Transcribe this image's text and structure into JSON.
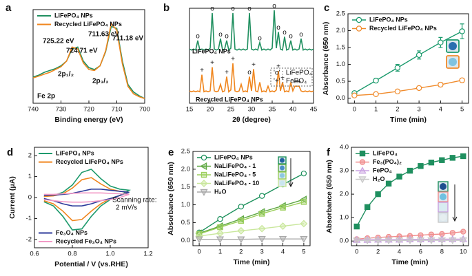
{
  "chart_data": [
    {
      "type": "line",
      "panel": "a",
      "xlabel": "Binding energy (eV)",
      "xlim": [
        740,
        700
      ],
      "xticks": [
        740,
        730,
        720,
        710,
        700
      ],
      "ylim": [
        0,
        1
      ],
      "legend": "upper left",
      "x": [
        740,
        738,
        736,
        734,
        732,
        730,
        728,
        726,
        724,
        722,
        720,
        718,
        716,
        714,
        712,
        710,
        708,
        706,
        704,
        702,
        700
      ],
      "series": [
        {
          "name": "LiFePO₄ NPs",
          "color": "#1f8f5f",
          "values": [
            0.28,
            0.3,
            0.33,
            0.35,
            0.37,
            0.4,
            0.45,
            0.58,
            0.6,
            0.45,
            0.38,
            0.36,
            0.4,
            0.55,
            0.82,
            0.8,
            0.45,
            0.2,
            0.12,
            0.08,
            0.05
          ]
        },
        {
          "name": "Recycled LiFePO₄ NPs",
          "color": "#f0861e",
          "values": [
            0.27,
            0.29,
            0.31,
            0.33,
            0.36,
            0.39,
            0.45,
            0.6,
            0.58,
            0.43,
            0.36,
            0.35,
            0.4,
            0.56,
            0.85,
            0.78,
            0.42,
            0.18,
            0.1,
            0.07,
            0.05
          ]
        }
      ],
      "annotations": [
        "725.22 eV",
        "724.71 eV",
        "711.63 eV",
        "711.18 eV",
        "2p₁/₂",
        "2p₃/₂",
        "Fe 2p"
      ]
    },
    {
      "type": "line",
      "panel": "b",
      "xlabel": "2θ (degree)",
      "xlim": [
        15,
        45
      ],
      "xticks": [
        15,
        20,
        25,
        30,
        35,
        40,
        45
      ],
      "ylim": [
        0,
        1
      ],
      "legend": "inline",
      "x": [
        15,
        15.5,
        16,
        16.5,
        17,
        17.5,
        18,
        18.5,
        19,
        19.5,
        20,
        20.5,
        21,
        21.5,
        22,
        22.5,
        23,
        23.5,
        24,
        24.5,
        25,
        25.5,
        26,
        26.5,
        27,
        27.5,
        28,
        28.5,
        29,
        29.5,
        30,
        30.5,
        31,
        31.5,
        32,
        32.5,
        33,
        33.5,
        34,
        34.5,
        35,
        35.5,
        36,
        36.5,
        37,
        37.5,
        38,
        38.5,
        39,
        39.5,
        40,
        40.5,
        41,
        41.5,
        42,
        42.5,
        43,
        43.5,
        44,
        44.5,
        45
      ],
      "series": [
        {
          "name": "LiFePO₄ NPs",
          "color": "#1f8f5f",
          "values": [
            0.57,
            0.56,
            0.57,
            0.56,
            0.66,
            0.56,
            0.57,
            0.56,
            0.57,
            0.56,
            0.58,
            0.95,
            0.57,
            0.56,
            0.57,
            0.68,
            0.56,
            0.57,
            0.66,
            0.56,
            0.58,
            0.95,
            0.57,
            0.56,
            0.57,
            0.56,
            0.57,
            0.56,
            0.57,
            0.95,
            0.57,
            0.56,
            0.57,
            0.56,
            0.64,
            0.56,
            0.57,
            0.56,
            0.57,
            0.56,
            0.58,
            0.98,
            0.58,
            0.75,
            0.57,
            0.56,
            0.7,
            0.56,
            0.57,
            0.66,
            0.56,
            0.57,
            0.56,
            0.57,
            0.68,
            0.56,
            0.57,
            0.56,
            0.57,
            0.56,
            0.57
          ],
          "peaks": [
            {
              "x": 17,
              "label": "o"
            },
            {
              "x": 20.5,
              "label": "o"
            },
            {
              "x": 22.5,
              "label": "o"
            },
            {
              "x": 24,
              "label": "o"
            },
            {
              "x": 25.5,
              "label": "o"
            },
            {
              "x": 29.5,
              "label": "o"
            },
            {
              "x": 32,
              "label": "o"
            },
            {
              "x": 35.5,
              "label": "o"
            },
            {
              "x": 36.5,
              "label": "o"
            },
            {
              "x": 38,
              "label": "o"
            },
            {
              "x": 39.5,
              "label": "o"
            },
            {
              "x": 42,
              "label": "o"
            }
          ]
        },
        {
          "name": "Recycled LiFePO₄ NPs",
          "color": "#f0861e",
          "values": [
            0.13,
            0.12,
            0.13,
            0.12,
            0.13,
            0.12,
            0.3,
            0.12,
            0.13,
            0.12,
            0.13,
            0.38,
            0.13,
            0.12,
            0.13,
            0.2,
            0.12,
            0.13,
            0.28,
            0.12,
            0.14,
            0.42,
            0.13,
            0.12,
            0.13,
            0.2,
            0.12,
            0.13,
            0.12,
            0.28,
            0.13,
            0.36,
            0.13,
            0.12,
            0.22,
            0.12,
            0.13,
            0.12,
            0.18,
            0.12,
            0.13,
            0.12,
            0.14,
            0.34,
            0.13,
            0.22,
            0.12,
            0.13,
            0.12,
            0.22,
            0.13,
            0.18,
            0.18,
            0.18,
            0.13,
            0.12,
            0.13,
            0.12,
            0.13,
            0.12,
            0.13
          ],
          "peaks": [
            {
              "x": 18,
              "label": "+"
            },
            {
              "x": 20.5,
              "label": "+"
            },
            {
              "x": 24,
              "label": "+"
            },
            {
              "x": 25.5,
              "label": "+"
            },
            {
              "x": 29.5,
              "label": "o"
            },
            {
              "x": 30.5,
              "label": "+"
            },
            {
              "x": 36.5,
              "label": "+"
            },
            {
              "x": 37.5,
              "label": "+"
            },
            {
              "x": 40.5,
              "label": "+"
            },
            {
              "x": 41,
              "label": "+"
            },
            {
              "x": 41.5,
              "label": "+"
            }
          ]
        }
      ],
      "annotations": [
        "'o' : LiFePO₄",
        "'+' : FePO₄"
      ]
    },
    {
      "type": "line",
      "panel": "c",
      "xlabel": "Time (min)",
      "ylabel": "Absorbance (650 nm)",
      "xlim": [
        -0.3,
        5.3
      ],
      "xticks": [
        0,
        1,
        2,
        3,
        4,
        5
      ],
      "ylim": [
        -0.15,
        2.5
      ],
      "yticks": [
        {
          "value": 0,
          "label": "0.0"
        },
        0.5,
        {
          "value": 1,
          "label": "1.0"
        },
        1.5,
        {
          "value": 2,
          "label": "2.0"
        },
        2.5
      ],
      "legend": "upper left",
      "x": [
        0,
        1,
        2,
        3,
        4,
        5
      ],
      "series": [
        {
          "name": "LiFePO₄ NPs",
          "color": "#1a9a6c",
          "marker": "circle-open",
          "values": [
            0.15,
            0.52,
            0.9,
            1.28,
            1.65,
            1.98
          ],
          "errors": [
            0.05,
            0.06,
            0.1,
            0.12,
            0.15,
            0.22
          ]
        },
        {
          "name": "Recycled  LiFePO₄ NPs",
          "color": "#f08a2a",
          "marker": "circle-open",
          "values": [
            0.08,
            0.12,
            0.2,
            0.3,
            0.4,
            0.53
          ],
          "errors": [
            0.03,
            0.03,
            0.04,
            0.05,
            0.06,
            0.06
          ]
        }
      ]
    },
    {
      "type": "line",
      "panel": "d",
      "xlabel": "Potential / V (vs.RHE)",
      "ylabel": "Current (μA)",
      "xlim": [
        0.6,
        1.2
      ],
      "xticks": [
        0.6,
        0.8,
        {
          "value": 1,
          "label": "1.0"
        },
        1.2
      ],
      "ylim": [
        -2.4,
        2.4
      ],
      "yticks": [
        -2,
        -1,
        0,
        1,
        2
      ],
      "legend": "upper left",
      "x": [
        0.65,
        0.7,
        0.75,
        0.8,
        0.85,
        0.9,
        0.95,
        1,
        1.05,
        1.1,
        1.05,
        1,
        0.95,
        0.9,
        0.85,
        0.8,
        0.75,
        0.7,
        0.65
      ],
      "series": [
        {
          "name": "LiFePO₄ NPs",
          "color": "#1d9a6c",
          "values": [
            0.05,
            0.1,
            0.25,
            0.6,
            1.2,
            1.35,
            0.9,
            0.55,
            0.4,
            0.35,
            0.1,
            -0.1,
            -0.4,
            -0.9,
            -1.5,
            -1.55,
            -0.9,
            -0.4,
            -0.2
          ]
        },
        {
          "name": "Recycled LiFePO₄ NPs",
          "color": "#f0861e",
          "values": [
            0.05,
            0.08,
            0.18,
            0.45,
            0.85,
            0.95,
            0.65,
            0.4,
            0.3,
            0.25,
            0.1,
            -0.05,
            -0.3,
            -0.65,
            -1.05,
            -1.1,
            -0.65,
            -0.3,
            -0.15
          ]
        },
        {
          "name": "Fe₃O₄ NPs",
          "color": "#2b3a9a",
          "legend": "lower left",
          "values": [
            0.1,
            0.12,
            0.15,
            0.2,
            0.3,
            0.4,
            0.4,
            0.35,
            0.3,
            0.25,
            0.1,
            -0.05,
            -0.15,
            -0.3,
            -0.4,
            -0.4,
            -0.3,
            -0.15,
            -0.05
          ]
        },
        {
          "name": "Recycled Fe₃O₄ NPs",
          "color": "#f29ac6",
          "legend": "lower left",
          "values": [
            0.15,
            0.15,
            0.18,
            0.2,
            0.22,
            0.22,
            0.22,
            0.2,
            0.18,
            0.15,
            0,
            -0.1,
            -0.15,
            -0.2,
            -0.22,
            -0.22,
            -0.2,
            -0.15,
            -0.1
          ]
        }
      ],
      "annotations": [
        "Scanning rate:",
        "2 mV/s"
      ]
    },
    {
      "type": "line",
      "panel": "e",
      "xlabel": "Time (min)",
      "ylabel": "Absorbance (650 nm)",
      "xlim": [
        -0.3,
        5.3
      ],
      "xticks": [
        0,
        1,
        2,
        3,
        4,
        5
      ],
      "ylim": [
        -0.15,
        2.5
      ],
      "yticks": [
        {
          "value": 0,
          "label": "0.0"
        },
        0.5,
        {
          "value": 1,
          "label": "1.0"
        },
        1.5,
        {
          "value": 2,
          "label": "2.0"
        },
        2.5
      ],
      "legend": "upper left",
      "x": [
        0,
        1,
        2,
        3,
        4,
        5
      ],
      "series": [
        {
          "name": "LiFePO₄ NPs",
          "color": "#1a8f5a",
          "marker": "circle-open",
          "values": [
            0.22,
            0.6,
            0.95,
            1.25,
            1.57,
            1.88
          ]
        },
        {
          "name": "NaLiFePO₄ - 1",
          "color": "#5fa843",
          "marker": "triangle-left",
          "values": [
            0.2,
            0.4,
            0.6,
            0.8,
            0.97,
            1.15
          ]
        },
        {
          "name": "NaLiFePO₄ - 5",
          "color": "#9ccf5c",
          "marker": "square",
          "values": [
            0.18,
            0.37,
            0.55,
            0.75,
            0.92,
            1.08
          ]
        },
        {
          "name": "NaLiFePO₄ - 10",
          "color": "#c9e79c",
          "marker": "diamond",
          "values": [
            0.12,
            0.2,
            0.27,
            0.33,
            0.4,
            0.47
          ]
        },
        {
          "name": "H₂O",
          "color": "#a9a9a9",
          "marker": "triangle-down",
          "values": [
            0.03,
            0.03,
            0.03,
            0.04,
            0.04,
            0.04
          ]
        }
      ]
    },
    {
      "type": "line",
      "panel": "f",
      "xlabel": "Time (min)",
      "ylabel": "Absorbance (650 nm)",
      "xlim": [
        -0.5,
        10.5
      ],
      "xticks": [
        0,
        2,
        4,
        6,
        8,
        10
      ],
      "ylim": [
        -0.2,
        4
      ],
      "yticks": [
        {
          "value": 0,
          "label": "0.0"
        },
        {
          "value": 1,
          "label": "1.0"
        },
        {
          "value": 2,
          "label": "2.0"
        },
        {
          "value": 3,
          "label": "3.0"
        },
        {
          "value": 4,
          "label": "4.0"
        }
      ],
      "legend": "upper left",
      "x": [
        0,
        1,
        2,
        3,
        4,
        5,
        6,
        7,
        8,
        9,
        10
      ],
      "series": [
        {
          "name": "LiFePO₄",
          "color": "#1f8f5f",
          "marker": "square-filled",
          "values": [
            0.62,
            1.45,
            2.0,
            2.45,
            2.75,
            3.0,
            3.2,
            3.35,
            3.45,
            3.55,
            3.62
          ]
        },
        {
          "name": "Fe₃(PO₄)₂",
          "color": "#f08c8c",
          "marker": "circle",
          "values": [
            0.08,
            0.12,
            0.15,
            0.18,
            0.2,
            0.22,
            0.25,
            0.28,
            0.3,
            0.35,
            0.4
          ]
        },
        {
          "name": "FePO₄",
          "color": "#c8a0e0",
          "marker": "triangle-up",
          "values": [
            0.05,
            0.05,
            0.06,
            0.06,
            0.06,
            0.07,
            0.07,
            0.07,
            0.08,
            0.08,
            0.08
          ]
        },
        {
          "name": "H₂O",
          "color": "#c9c9c9",
          "marker": "triangle-down",
          "values": [
            0.02,
            0.02,
            0.02,
            0.02,
            0.02,
            0.03,
            0.03,
            0.03,
            0.03,
            0.03,
            0.03
          ]
        }
      ]
    }
  ]
}
